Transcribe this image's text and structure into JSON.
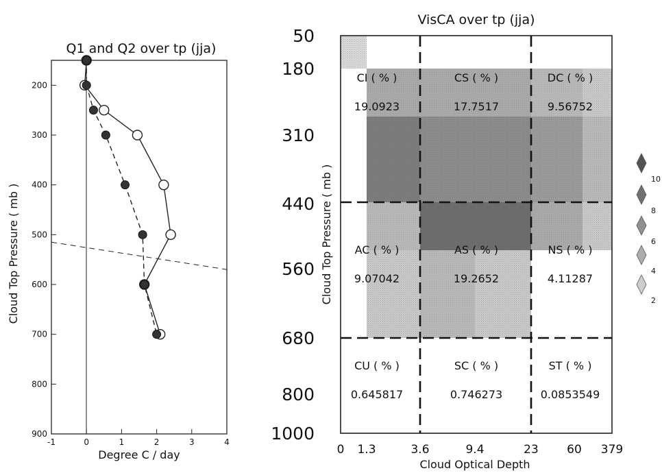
{
  "chart_data": [
    {
      "type": "line",
      "title": "Q1 and Q2 over tp (jja)",
      "xlabel": "Degree C / day",
      "ylabel": "Cloud Top Pressure ( mb )",
      "xlim": [
        -1,
        4
      ],
      "ylim": [
        900,
        150
      ],
      "xticks": [
        "-1",
        "0",
        "1",
        "2",
        "3",
        "4"
      ],
      "yticks": [
        "200",
        "300",
        "400",
        "500",
        "600",
        "700",
        "800",
        "900"
      ],
      "ytick_values": [
        200,
        300,
        400,
        500,
        600,
        700,
        800,
        900
      ],
      "series": [
        {
          "marker": "open-circle",
          "line": "solid",
          "x": [
            0.0,
            -0.05,
            0.5,
            1.45,
            2.2,
            2.4,
            1.65,
            2.1
          ],
          "y": [
            150,
            200,
            250,
            300,
            400,
            500,
            600,
            700
          ]
        },
        {
          "marker": "filled-circle",
          "line": "dashed",
          "x": [
            0.0,
            0.0,
            0.2,
            0.55,
            1.1,
            1.6,
            1.65,
            2.0
          ],
          "y": [
            150,
            200,
            250,
            300,
            400,
            500,
            600,
            700
          ]
        }
      ],
      "reference_lines": [
        {
          "style": "dashed",
          "from": [
            -1,
            515
          ],
          "to": [
            4,
            570
          ]
        }
      ]
    },
    {
      "type": "heatmap",
      "title": "VisCA over tp (jja)",
      "xlabel": "Cloud Optical Depth",
      "ylabel": "Cloud Top Pressure ( mb )",
      "x_bins": [
        "0",
        "1.3",
        "3.6",
        "9.4",
        "23",
        "60",
        "379"
      ],
      "y_bins": [
        "50",
        "180",
        "310",
        "440",
        "560",
        "680",
        "800",
        "1000"
      ],
      "cells": [
        [
          1,
          0,
          0,
          0,
          0,
          0
        ],
        [
          0,
          4,
          4,
          4,
          3,
          2
        ],
        [
          0,
          7,
          6,
          6,
          5,
          3
        ],
        [
          0,
          3,
          8,
          8,
          4,
          2
        ],
        [
          0,
          2,
          3,
          2,
          0,
          0
        ],
        [
          0,
          0,
          0,
          0,
          0,
          0
        ],
        [
          0,
          0,
          0,
          0,
          0,
          0
        ]
      ],
      "legend_ticks": [
        "10",
        "8",
        "6",
        "4",
        "2"
      ],
      "legend_levels": [
        10,
        8,
        6,
        4,
        2
      ],
      "groups": [
        {
          "label": "CI ( % )",
          "value": "19.0923"
        },
        {
          "label": "CS ( % )",
          "value": "17.7517"
        },
        {
          "label": "DC ( % )",
          "value": "9.56752"
        },
        {
          "label": "AC ( % )",
          "value": "9.07042"
        },
        {
          "label": "AS ( % )",
          "value": "19.2652"
        },
        {
          "label": "NS ( % )",
          "value": "4.11287"
        },
        {
          "label": "CU ( % )",
          "value": "0.645817"
        },
        {
          "label": "SC ( % )",
          "value": "0.746273"
        },
        {
          "label": "ST ( % )",
          "value": "0.0853549"
        }
      ]
    }
  ]
}
